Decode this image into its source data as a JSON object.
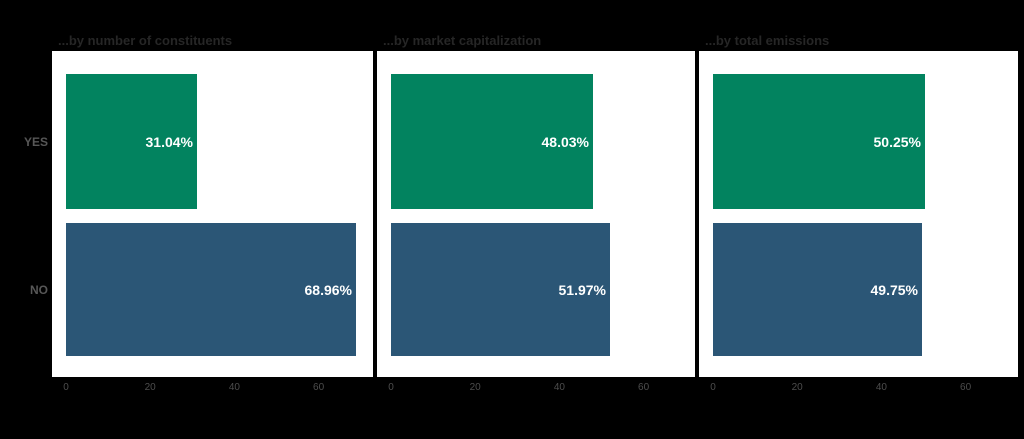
{
  "figure": {
    "background_color": "#000000",
    "panel_background_color": "#ffffff",
    "title_color": "#262626",
    "axis_text_color": "#575757",
    "tick_text_color": "#4d4d4d",
    "bar_label_color": "#ffffff"
  },
  "chart_data": {
    "type": "bar",
    "orientation": "horizontal",
    "categories": [
      "YES",
      "NO"
    ],
    "series_colors": [
      "#02835f",
      "#2b5676"
    ],
    "x_ticks": [
      "0",
      "20",
      "40",
      "60"
    ],
    "x_tick_values": [
      0,
      20,
      40,
      60
    ],
    "xlim": [
      0,
      73
    ],
    "grid": false,
    "legend": "none",
    "panels": [
      {
        "title": "...by number of constituents",
        "values": [
          31.04,
          68.96
        ],
        "labels": [
          "31.04%",
          "68.96%"
        ]
      },
      {
        "title": "...by market capitalization",
        "values": [
          48.03,
          51.97
        ],
        "labels": [
          "48.03%",
          "51.97%"
        ]
      },
      {
        "title": "...by total emissions",
        "values": [
          50.25,
          49.75
        ],
        "labels": [
          "50.25%",
          "49.75%"
        ]
      }
    ]
  }
}
